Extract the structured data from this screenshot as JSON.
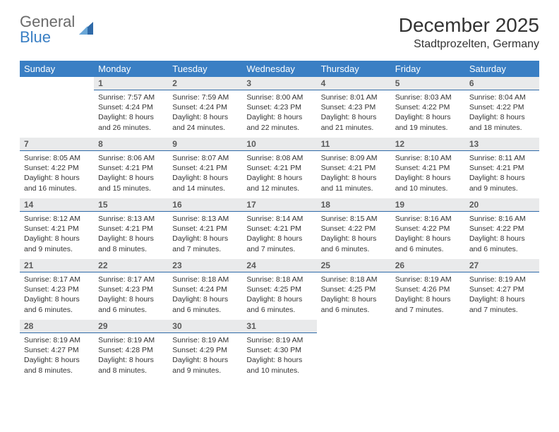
{
  "brand": {
    "line1": "General",
    "line2": "Blue",
    "icon_color": "#2f6aa8"
  },
  "title": "December 2025",
  "location": "Stadtprozelten, Germany",
  "colors": {
    "header_bg": "#3a7fc4",
    "header_text": "#ffffff",
    "daynum_bg": "#e9eaeb",
    "daynum_border": "#2f6aa8",
    "body_text": "#333333"
  },
  "weekdays": [
    "Sunday",
    "Monday",
    "Tuesday",
    "Wednesday",
    "Thursday",
    "Friday",
    "Saturday"
  ],
  "weeks": [
    [
      null,
      {
        "n": "1",
        "sr": "7:57 AM",
        "ss": "4:24 PM",
        "dl": "8 hours and 26 minutes."
      },
      {
        "n": "2",
        "sr": "7:59 AM",
        "ss": "4:24 PM",
        "dl": "8 hours and 24 minutes."
      },
      {
        "n": "3",
        "sr": "8:00 AM",
        "ss": "4:23 PM",
        "dl": "8 hours and 22 minutes."
      },
      {
        "n": "4",
        "sr": "8:01 AM",
        "ss": "4:23 PM",
        "dl": "8 hours and 21 minutes."
      },
      {
        "n": "5",
        "sr": "8:03 AM",
        "ss": "4:22 PM",
        "dl": "8 hours and 19 minutes."
      },
      {
        "n": "6",
        "sr": "8:04 AM",
        "ss": "4:22 PM",
        "dl": "8 hours and 18 minutes."
      }
    ],
    [
      {
        "n": "7",
        "sr": "8:05 AM",
        "ss": "4:22 PM",
        "dl": "8 hours and 16 minutes."
      },
      {
        "n": "8",
        "sr": "8:06 AM",
        "ss": "4:21 PM",
        "dl": "8 hours and 15 minutes."
      },
      {
        "n": "9",
        "sr": "8:07 AM",
        "ss": "4:21 PM",
        "dl": "8 hours and 14 minutes."
      },
      {
        "n": "10",
        "sr": "8:08 AM",
        "ss": "4:21 PM",
        "dl": "8 hours and 12 minutes."
      },
      {
        "n": "11",
        "sr": "8:09 AM",
        "ss": "4:21 PM",
        "dl": "8 hours and 11 minutes."
      },
      {
        "n": "12",
        "sr": "8:10 AM",
        "ss": "4:21 PM",
        "dl": "8 hours and 10 minutes."
      },
      {
        "n": "13",
        "sr": "8:11 AM",
        "ss": "4:21 PM",
        "dl": "8 hours and 9 minutes."
      }
    ],
    [
      {
        "n": "14",
        "sr": "8:12 AM",
        "ss": "4:21 PM",
        "dl": "8 hours and 9 minutes."
      },
      {
        "n": "15",
        "sr": "8:13 AM",
        "ss": "4:21 PM",
        "dl": "8 hours and 8 minutes."
      },
      {
        "n": "16",
        "sr": "8:13 AM",
        "ss": "4:21 PM",
        "dl": "8 hours and 7 minutes."
      },
      {
        "n": "17",
        "sr": "8:14 AM",
        "ss": "4:21 PM",
        "dl": "8 hours and 7 minutes."
      },
      {
        "n": "18",
        "sr": "8:15 AM",
        "ss": "4:22 PM",
        "dl": "8 hours and 6 minutes."
      },
      {
        "n": "19",
        "sr": "8:16 AM",
        "ss": "4:22 PM",
        "dl": "8 hours and 6 minutes."
      },
      {
        "n": "20",
        "sr": "8:16 AM",
        "ss": "4:22 PM",
        "dl": "8 hours and 6 minutes."
      }
    ],
    [
      {
        "n": "21",
        "sr": "8:17 AM",
        "ss": "4:23 PM",
        "dl": "8 hours and 6 minutes."
      },
      {
        "n": "22",
        "sr": "8:17 AM",
        "ss": "4:23 PM",
        "dl": "8 hours and 6 minutes."
      },
      {
        "n": "23",
        "sr": "8:18 AM",
        "ss": "4:24 PM",
        "dl": "8 hours and 6 minutes."
      },
      {
        "n": "24",
        "sr": "8:18 AM",
        "ss": "4:25 PM",
        "dl": "8 hours and 6 minutes."
      },
      {
        "n": "25",
        "sr": "8:18 AM",
        "ss": "4:25 PM",
        "dl": "8 hours and 6 minutes."
      },
      {
        "n": "26",
        "sr": "8:19 AM",
        "ss": "4:26 PM",
        "dl": "8 hours and 7 minutes."
      },
      {
        "n": "27",
        "sr": "8:19 AM",
        "ss": "4:27 PM",
        "dl": "8 hours and 7 minutes."
      }
    ],
    [
      {
        "n": "28",
        "sr": "8:19 AM",
        "ss": "4:27 PM",
        "dl": "8 hours and 8 minutes."
      },
      {
        "n": "29",
        "sr": "8:19 AM",
        "ss": "4:28 PM",
        "dl": "8 hours and 8 minutes."
      },
      {
        "n": "30",
        "sr": "8:19 AM",
        "ss": "4:29 PM",
        "dl": "8 hours and 9 minutes."
      },
      {
        "n": "31",
        "sr": "8:19 AM",
        "ss": "4:30 PM",
        "dl": "8 hours and 10 minutes."
      },
      null,
      null,
      null
    ]
  ],
  "labels": {
    "sunrise_prefix": "Sunrise: ",
    "sunset_prefix": "Sunset: ",
    "daylight_prefix": "Daylight: "
  }
}
